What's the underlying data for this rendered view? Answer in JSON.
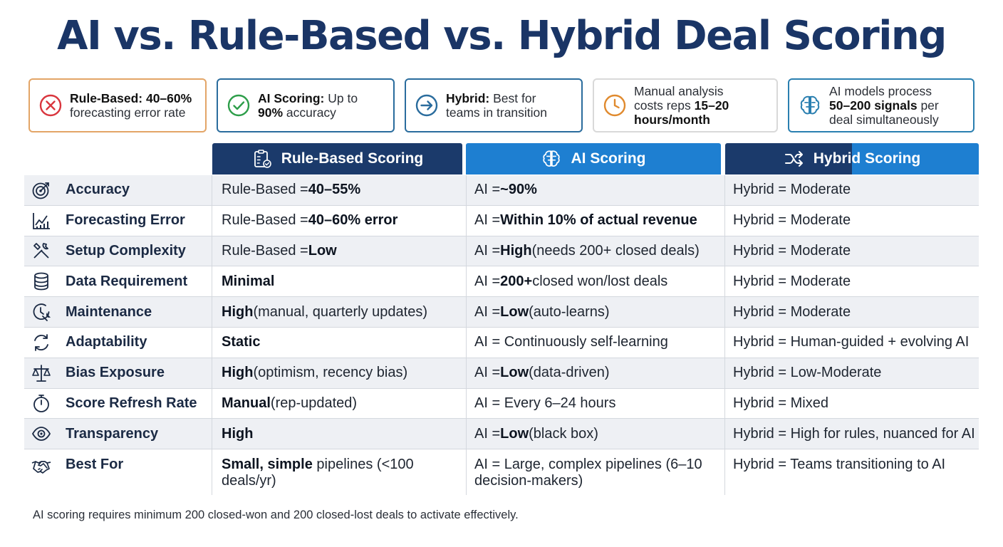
{
  "title": "AI vs. Rule-Based vs. Hybrid Deal Scoring",
  "callouts": [
    {
      "icon": "x-circle-icon",
      "color": "#d9363e",
      "bold": "Rule-Based: 40–60%",
      "rest": "forecasting error rate"
    },
    {
      "icon": "check-circle-icon",
      "color": "#2e9e4a",
      "bold": "AI Scoring:",
      "rest_pre": "Up to",
      "bold2": "90%",
      "rest": "accuracy"
    },
    {
      "icon": "arrow-circle-icon",
      "color": "#2a6c9d",
      "bold": "Hybrid:",
      "rest_pre": "Best for",
      "rest": "teams in transition"
    },
    {
      "icon": "clock-icon",
      "color": "#e08a2e",
      "pre": "Manual analysis",
      "pre2": "costs reps",
      "bold": "15–20",
      "bold2": "hours/month"
    },
    {
      "icon": "brain-icon",
      "color": "#2a7fb0",
      "pre": "AI models process",
      "bold": "50–200 signals",
      "rest_pre": "per",
      "rest": "deal simultaneously"
    }
  ],
  "headers": {
    "rule": "Rule-Based Scoring",
    "ai": "AI Scoring",
    "hybrid": "Hybrid Scoring"
  },
  "rows": [
    {
      "icon": "target-icon",
      "label": "Accuracy",
      "rule": {
        "pre": "Rule-Based = ",
        "bold": "40–55%",
        "post": ""
      },
      "ai": {
        "pre": "AI = ",
        "bold": "~90%",
        "post": ""
      },
      "hybrid": {
        "pre": "Hybrid = Moderate",
        "bold": "",
        "post": ""
      }
    },
    {
      "icon": "chart-icon",
      "label": "Forecasting Error",
      "rule": {
        "pre": "Rule-Based = ",
        "bold": "40–60% error",
        "post": ""
      },
      "ai": {
        "pre": "AI = ",
        "bold": "Within 10% of actual revenue",
        "post": ""
      },
      "hybrid": {
        "pre": "Hybrid = Moderate",
        "bold": "",
        "post": ""
      }
    },
    {
      "icon": "tools-icon",
      "label": "Setup Complexity",
      "rule": {
        "pre": "Rule-Based = ",
        "bold": "Low",
        "post": ""
      },
      "ai": {
        "pre": "AI = ",
        "bold": "High",
        "post": " (needs 200+ closed deals)"
      },
      "hybrid": {
        "pre": "Hybrid = Moderate",
        "bold": "",
        "post": ""
      }
    },
    {
      "icon": "database-icon",
      "label": "Data Requirement",
      "rule": {
        "pre": "",
        "bold": "Minimal",
        "post": ""
      },
      "ai": {
        "pre": "AI = ",
        "bold": "200+",
        "post": " closed won/lost deals"
      },
      "hybrid": {
        "pre": "Hybrid = Moderate",
        "bold": "",
        "post": ""
      }
    },
    {
      "icon": "maintenance-icon",
      "label": "Maintenance",
      "rule": {
        "pre": "",
        "bold": "High",
        "post": " (manual, quarterly updates)"
      },
      "ai": {
        "pre": "AI = ",
        "bold": "Low",
        "post": " (auto-learns)"
      },
      "hybrid": {
        "pre": "Hybrid = Moderate",
        "bold": "",
        "post": ""
      }
    },
    {
      "icon": "refresh-icon",
      "label": "Adaptability",
      "rule": {
        "pre": "",
        "bold": "Static",
        "post": ""
      },
      "ai": {
        "pre": "AI = Continuously self-learning",
        "bold": "",
        "post": ""
      },
      "hybrid": {
        "pre": "Hybrid = Human-guided + evolving AI",
        "bold": "",
        "post": ""
      }
    },
    {
      "icon": "scale-icon",
      "label": "Bias Exposure",
      "rule": {
        "pre": "",
        "bold": "High",
        "post": " (optimism, recency bias)"
      },
      "ai": {
        "pre": "AI = ",
        "bold": "Low",
        "post": " (data-driven)"
      },
      "hybrid": {
        "pre": "Hybrid = Low-Moderate",
        "bold": "",
        "post": ""
      }
    },
    {
      "icon": "stopwatch-icon",
      "label": "Score Refresh Rate",
      "rule": {
        "pre": "",
        "bold": "Manual",
        "post": " (rep-updated)"
      },
      "ai": {
        "pre": "AI = Every 6–24 hours",
        "bold": "",
        "post": ""
      },
      "hybrid": {
        "pre": "Hybrid = Mixed",
        "bold": "",
        "post": ""
      }
    },
    {
      "icon": "eye-icon",
      "label": "Transparency",
      "rule": {
        "pre": "",
        "bold": "High",
        "post": ""
      },
      "ai": {
        "pre": "AI = ",
        "bold": "Low",
        "post": " (black box)"
      },
      "hybrid": {
        "pre": "Hybrid = High for rules, nuanced for AI",
        "bold": "",
        "post": ""
      }
    },
    {
      "icon": "handshake-icon",
      "label": "Best For",
      "rule": {
        "pre": "",
        "bold": "Small, simple",
        "post": " pipelines (<100 deals/yr)"
      },
      "ai": {
        "pre": "AI = Large, complex pipelines (6–10 decision-makers)",
        "bold": "",
        "post": ""
      },
      "hybrid": {
        "pre": "Hybrid = Teams transitioning to AI",
        "bold": "",
        "post": ""
      }
    }
  ],
  "footnote": "AI scoring requires minimum 200 closed-won and 200 closed-lost deals to activate effectively."
}
